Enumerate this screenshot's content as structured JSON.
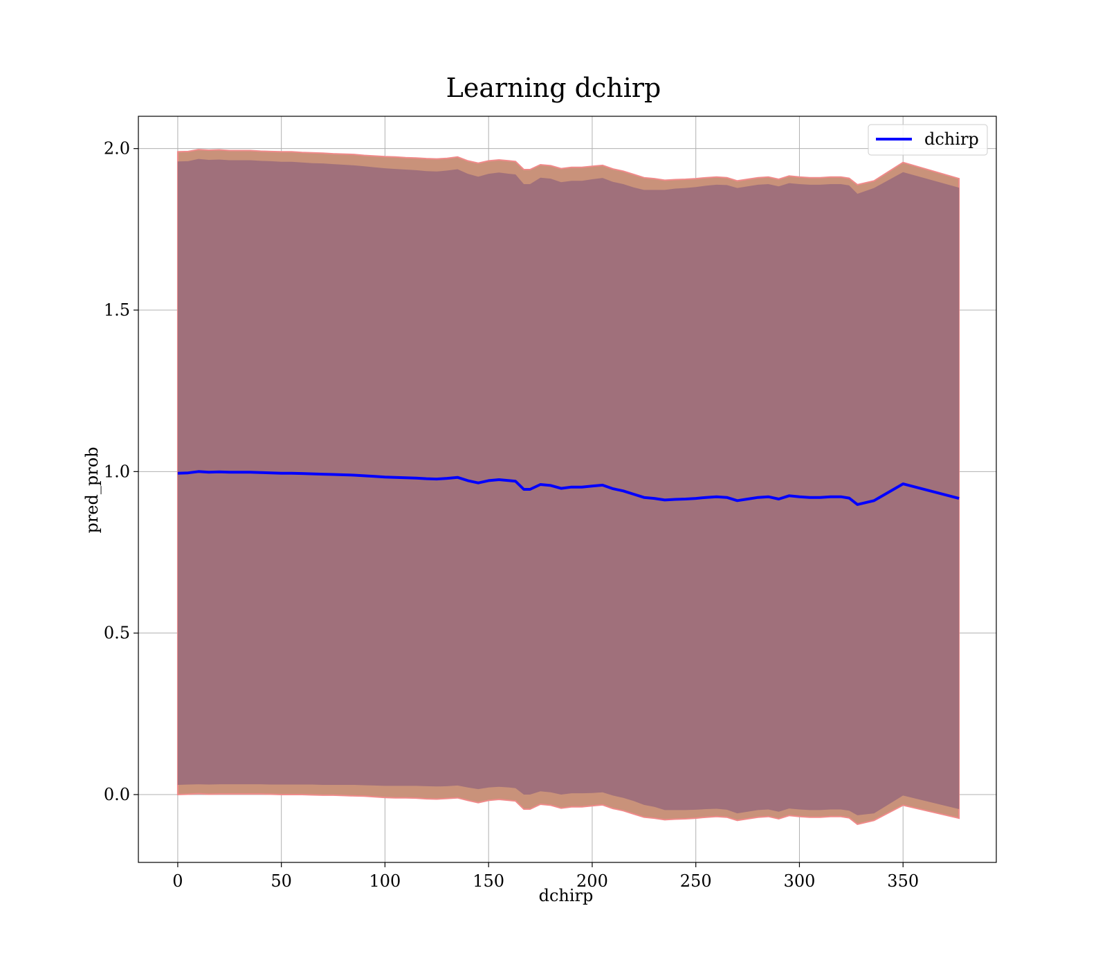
{
  "chart_data": {
    "type": "line",
    "title": "Learning dchirp",
    "xlabel": "dchirp",
    "ylabel": "pred_prob",
    "xlim": [
      -19,
      395
    ],
    "ylim": [
      -0.21,
      2.1
    ],
    "xticks": [
      0,
      50,
      100,
      150,
      200,
      250,
      300,
      350
    ],
    "yticks": [
      0.0,
      0.5,
      1.0,
      1.5,
      2.0
    ],
    "xtick_labels": [
      "0",
      "50",
      "100",
      "150",
      "200",
      "250",
      "300",
      "350"
    ],
    "ytick_labels": [
      "0.0",
      "0.5",
      "1.0",
      "1.5",
      "2.0"
    ],
    "grid": true,
    "legend_position": "top-right",
    "colors": {
      "line": "#0000ff",
      "inner_band": "#a0707b",
      "outer_band": "#c9927a",
      "outer_band_edge": "#f08a8a",
      "grid": "#b0b0b0"
    },
    "series": [
      {
        "name": "dchirp",
        "x": [
          0,
          5,
          10,
          15,
          20,
          25,
          30,
          35,
          40,
          45,
          50,
          55,
          60,
          65,
          70,
          75,
          80,
          85,
          90,
          95,
          100,
          105,
          110,
          115,
          120,
          125,
          130,
          135,
          140,
          145,
          150,
          155,
          160,
          163,
          167,
          170,
          175,
          180,
          185,
          190,
          195,
          200,
          205,
          210,
          215,
          220,
          225,
          230,
          235,
          240,
          245,
          250,
          255,
          260,
          265,
          270,
          275,
          280,
          285,
          290,
          295,
          300,
          305,
          310,
          315,
          320,
          324,
          328,
          336,
          350,
          377
        ],
        "y": [
          0.995,
          0.996,
          1.0,
          0.998,
          0.999,
          0.998,
          0.998,
          0.998,
          0.997,
          0.996,
          0.995,
          0.995,
          0.994,
          0.993,
          0.992,
          0.991,
          0.99,
          0.989,
          0.987,
          0.985,
          0.983,
          0.982,
          0.981,
          0.98,
          0.978,
          0.977,
          0.979,
          0.982,
          0.972,
          0.965,
          0.972,
          0.975,
          0.972,
          0.97,
          0.945,
          0.945,
          0.96,
          0.957,
          0.948,
          0.952,
          0.952,
          0.955,
          0.958,
          0.947,
          0.94,
          0.93,
          0.92,
          0.917,
          0.912,
          0.914,
          0.915,
          0.917,
          0.92,
          0.922,
          0.92,
          0.91,
          0.915,
          0.92,
          0.922,
          0.915,
          0.925,
          0.922,
          0.92,
          0.92,
          0.922,
          0.922,
          0.918,
          0.898,
          0.91,
          0.962,
          0.917
        ]
      }
    ],
    "bands": {
      "inner_half_width": [
        0.965,
        0.965,
        0.968,
        0.967,
        0.967,
        0.966,
        0.966,
        0.966,
        0.965,
        0.965,
        0.964,
        0.964,
        0.963,
        0.962,
        0.962,
        0.961,
        0.96,
        0.959,
        0.958,
        0.957,
        0.956,
        0.955,
        0.954,
        0.953,
        0.952,
        0.952,
        0.953,
        0.954,
        0.95,
        0.948,
        0.95,
        0.951,
        0.95,
        0.95,
        0.945,
        0.945,
        0.95,
        0.95,
        0.948,
        0.948,
        0.948,
        0.95,
        0.951,
        0.95,
        0.95,
        0.95,
        0.952,
        0.955,
        0.96,
        0.962,
        0.963,
        0.964,
        0.965,
        0.966,
        0.967,
        0.968,
        0.968,
        0.968,
        0.968,
        0.968,
        0.968,
        0.968,
        0.968,
        0.968,
        0.968,
        0.968,
        0.968,
        0.962,
        0.968,
        0.965,
        0.962
      ],
      "outer_half_width": [
        0.995,
        0.995,
        0.997,
        0.997,
        0.997,
        0.996,
        0.996,
        0.996,
        0.995,
        0.995,
        0.995,
        0.995,
        0.994,
        0.994,
        0.994,
        0.993,
        0.993,
        0.993,
        0.992,
        0.992,
        0.992,
        0.992,
        0.991,
        0.991,
        0.991,
        0.991,
        0.991,
        0.992,
        0.99,
        0.99,
        0.99,
        0.99,
        0.99,
        0.99,
        0.99,
        0.99,
        0.99,
        0.99,
        0.99,
        0.99,
        0.99,
        0.99,
        0.99,
        0.99,
        0.99,
        0.99,
        0.99,
        0.99,
        0.99,
        0.99,
        0.99,
        0.99,
        0.99,
        0.99,
        0.99,
        0.99,
        0.99,
        0.99,
        0.99,
        0.99,
        0.99,
        0.99,
        0.99,
        0.99,
        0.99,
        0.99,
        0.99,
        0.99,
        0.99,
        0.995,
        0.99
      ]
    }
  }
}
